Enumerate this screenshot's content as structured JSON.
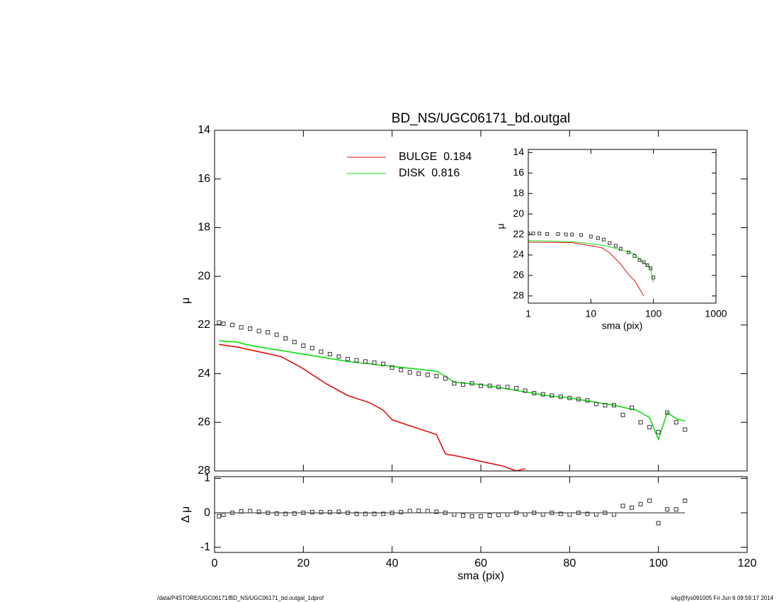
{
  "chart_data": [
    {
      "type": "line",
      "title": "BD_NS/UGC06171_bd.outgal",
      "ylabel": "μ",
      "xlim": [
        0,
        120
      ],
      "xticks": [
        0,
        20,
        40,
        60,
        80,
        100,
        120
      ],
      "ylim": [
        28,
        14
      ],
      "yticks": [
        14,
        16,
        18,
        20,
        22,
        24,
        26,
        28
      ],
      "legend": "top",
      "series": [
        {
          "name": "BULGE  0.184",
          "color": "#e01010",
          "x": [
            1,
            5,
            10,
            15,
            18,
            20,
            25,
            30,
            35,
            38,
            40,
            45,
            50,
            52,
            55,
            60,
            65,
            68,
            70
          ],
          "values": [
            22.8,
            22.9,
            23.1,
            23.3,
            23.6,
            23.8,
            24.4,
            24.9,
            25.2,
            25.5,
            25.9,
            26.2,
            26.5,
            27.3,
            27.4,
            27.6,
            27.8,
            28.0,
            27.9
          ]
        },
        {
          "name": "DISK  0.816",
          "color": "#10dd10",
          "x": [
            1,
            5,
            7,
            10,
            15,
            20,
            25,
            30,
            35,
            40,
            45,
            50,
            52,
            54,
            60,
            70,
            75,
            80,
            85,
            90,
            95,
            98,
            100,
            102,
            104,
            106
          ],
          "values": [
            22.65,
            22.7,
            22.8,
            22.9,
            23.05,
            23.2,
            23.35,
            23.5,
            23.6,
            23.7,
            23.8,
            23.9,
            24.1,
            24.35,
            24.45,
            24.75,
            24.9,
            25.0,
            25.15,
            25.3,
            25.5,
            25.8,
            26.7,
            25.6,
            25.85,
            25.95
          ]
        },
        {
          "color": "#444444",
          "markers": true,
          "x": [
            1,
            2,
            4,
            6,
            8,
            10,
            12,
            14,
            16,
            18,
            20,
            22,
            24,
            26,
            28,
            30,
            32,
            34,
            36,
            38,
            40,
            42,
            44,
            46,
            48,
            50,
            52,
            54,
            56,
            58,
            60,
            62,
            64,
            66,
            68,
            70,
            72,
            74,
            76,
            78,
            80,
            82,
            84,
            86,
            88,
            90,
            92,
            94,
            96,
            98,
            100,
            102,
            104,
            106
          ],
          "values": [
            21.9,
            21.95,
            22.0,
            22.1,
            22.15,
            22.25,
            22.3,
            22.4,
            22.55,
            22.7,
            22.85,
            22.95,
            23.1,
            23.2,
            23.3,
            23.4,
            23.45,
            23.5,
            23.55,
            23.6,
            23.75,
            23.85,
            23.95,
            24.0,
            24.05,
            24.1,
            24.2,
            24.4,
            24.45,
            24.4,
            24.5,
            24.5,
            24.55,
            24.55,
            24.6,
            24.7,
            24.8,
            24.85,
            24.9,
            24.95,
            25.0,
            25.05,
            25.1,
            25.25,
            25.3,
            25.3,
            25.7,
            25.4,
            26.0,
            26.2,
            26.4,
            25.6,
            26.0,
            26.3
          ]
        }
      ]
    },
    {
      "type": "scatter",
      "xlabel": "sma (pix)",
      "ylabel": "Δ μ",
      "xlim": [
        0,
        120
      ],
      "xticks": [
        0,
        20,
        40,
        60,
        80,
        100,
        120
      ],
      "ylim": [
        -1.15,
        1.05
      ],
      "yticks": [
        -1,
        0,
        1
      ],
      "hline": 0,
      "series": [
        {
          "color": "#444444",
          "x": [
            1,
            2,
            4,
            6,
            8,
            10,
            12,
            14,
            16,
            18,
            20,
            22,
            24,
            26,
            28,
            30,
            32,
            34,
            36,
            38,
            40,
            42,
            44,
            46,
            48,
            50,
            52,
            54,
            56,
            58,
            60,
            62,
            64,
            66,
            68,
            70,
            72,
            74,
            76,
            78,
            80,
            82,
            84,
            86,
            88,
            90,
            92,
            94,
            96,
            98,
            100,
            102,
            104,
            106
          ],
          "values": [
            -0.1,
            -0.06,
            0.0,
            0.04,
            0.05,
            0.03,
            0.0,
            -0.02,
            -0.03,
            -0.02,
            0.0,
            0.02,
            0.02,
            0.02,
            0.03,
            0.0,
            -0.03,
            -0.03,
            -0.03,
            -0.03,
            0.0,
            0.02,
            0.05,
            0.06,
            0.05,
            0.03,
            0.0,
            -0.05,
            -0.08,
            -0.1,
            -0.1,
            -0.08,
            -0.06,
            -0.05,
            0.0,
            -0.05,
            0.0,
            -0.05,
            0.0,
            -0.03,
            -0.05,
            0.0,
            -0.03,
            -0.05,
            0.0,
            -0.05,
            0.2,
            0.15,
            0.25,
            0.35,
            -0.3,
            0.1,
            0.1,
            0.35
          ]
        }
      ]
    },
    {
      "type": "line",
      "xlabel": "sma (pix)",
      "ylabel": "μ",
      "log_x": true,
      "xlim": [
        1,
        1000
      ],
      "xticks": [
        1,
        10,
        100,
        1000
      ],
      "ylim": [
        28.7,
        13.7
      ],
      "yticks": [
        14,
        16,
        18,
        20,
        22,
        24,
        26,
        28
      ],
      "series": [
        {
          "color": "#e01010",
          "x": [
            1,
            5,
            10,
            15,
            20,
            30,
            40,
            50,
            60,
            70
          ],
          "values": [
            22.75,
            22.8,
            23.1,
            23.3,
            23.8,
            24.9,
            25.9,
            26.5,
            27.3,
            28.0
          ]
        },
        {
          "color": "#10dd10",
          "x": [
            1,
            5,
            10,
            15,
            20,
            30,
            40,
            50,
            60,
            70,
            80,
            90,
            100
          ],
          "values": [
            22.6,
            22.7,
            22.9,
            23.05,
            23.2,
            23.5,
            23.7,
            23.9,
            24.45,
            24.75,
            25.0,
            25.3,
            26.7
          ]
        },
        {
          "color": "#444444",
          "markers": true,
          "x": [
            1,
            1.2,
            1.5,
            2,
            3,
            4,
            5,
            7,
            10,
            13,
            16,
            20,
            25,
            30,
            40,
            50,
            60,
            70,
            80,
            90,
            100
          ],
          "values": [
            21.9,
            21.9,
            21.9,
            21.95,
            21.95,
            22.0,
            22.0,
            22.05,
            22.2,
            22.35,
            22.5,
            22.85,
            23.1,
            23.4,
            23.75,
            24.1,
            24.5,
            24.7,
            25.0,
            25.3,
            26.2
          ]
        }
      ]
    }
  ],
  "footer_left": "/data/P4STORE/UGC06171/BD_NS/UGC06171_bd.outgal_1dprof",
  "footer_right": "s4g@fys091005  Fri Jun  6 09:59:17 2014"
}
